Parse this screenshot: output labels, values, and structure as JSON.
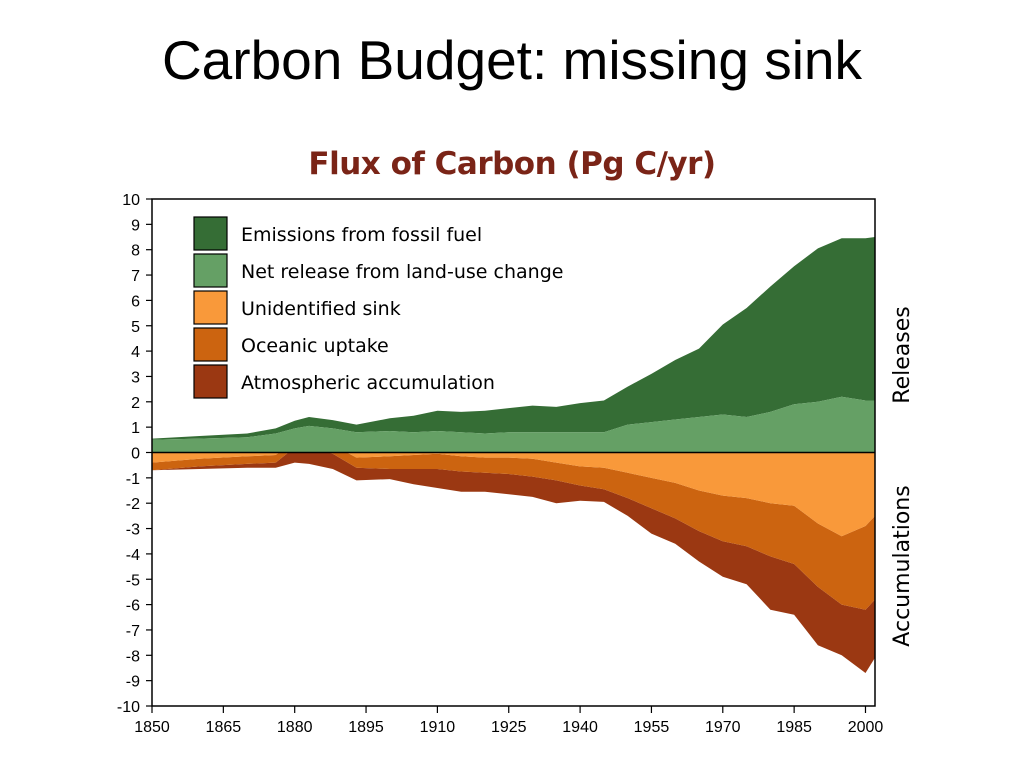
{
  "slide": {
    "title": "Carbon Budget: missing sink"
  },
  "chart_data": {
    "type": "area",
    "title": "Flux of Carbon (Pg C/yr)",
    "xlim": [
      1850,
      2002
    ],
    "ylim": [
      -10,
      10
    ],
    "x_ticks": [
      "1850",
      "1865",
      "1880",
      "1895",
      "1910",
      "1925",
      "1940",
      "1955",
      "1970",
      "1985",
      "2000"
    ],
    "y_ticks": [
      "10",
      "9",
      "8",
      "7",
      "6",
      "5",
      "4",
      "3",
      "2",
      "1",
      "0",
      "-1",
      "-2",
      "-3",
      "-4",
      "-5",
      "-6",
      "-7",
      "-8",
      "-9",
      "-10"
    ],
    "side_labels": {
      "top": "Releases",
      "bottom": "Accumulations"
    },
    "grid": false,
    "legend_position": "top-left",
    "series": [
      {
        "name": "Emissions from fossil fuel",
        "color": "#356d35",
        "x": [
          1850,
          1860,
          1870,
          1876,
          1880,
          1883,
          1888,
          1893,
          1900,
          1905,
          1910,
          1915,
          1920,
          1925,
          1930,
          1935,
          1940,
          1945,
          1950,
          1955,
          1960,
          1965,
          1970,
          1975,
          1980,
          1985,
          1990,
          1995,
          2000,
          2002
        ],
        "values": [
          0.05,
          0.1,
          0.15,
          0.2,
          0.3,
          0.35,
          0.33,
          0.3,
          0.5,
          0.65,
          0.8,
          0.8,
          0.9,
          0.95,
          1.05,
          1.0,
          1.15,
          1.25,
          1.5,
          1.9,
          2.35,
          2.7,
          3.55,
          4.3,
          4.95,
          5.45,
          6.05,
          6.25,
          6.4,
          6.45
        ]
      },
      {
        "name": "Net release from land-use change",
        "color": "#65a065",
        "x": [
          1850,
          1860,
          1870,
          1875,
          1880,
          1883,
          1887,
          1893,
          1900,
          1905,
          1910,
          1915,
          1920,
          1925,
          1930,
          1935,
          1940,
          1945,
          1950,
          1955,
          1960,
          1965,
          1970,
          1975,
          1980,
          1985,
          1990,
          1995,
          2000,
          2002
        ],
        "values": [
          0.5,
          0.55,
          0.6,
          0.75,
          0.95,
          1.05,
          0.95,
          0.8,
          0.85,
          0.8,
          0.85,
          0.8,
          0.75,
          0.8,
          0.8,
          0.8,
          0.8,
          0.8,
          1.1,
          1.2,
          1.3,
          1.4,
          1.5,
          1.4,
          1.6,
          1.9,
          2.0,
          2.2,
          2.05,
          2.05
        ]
      },
      {
        "name": "Unidentified sink",
        "color": "#f9993a",
        "x": [
          1850,
          1860,
          1870,
          1875,
          1880,
          1883,
          1887,
          1893,
          1900,
          1905,
          1910,
          1915,
          1920,
          1925,
          1930,
          1935,
          1940,
          1945,
          1950,
          1955,
          1960,
          1965,
          1970,
          1975,
          1980,
          1985,
          1990,
          1995,
          2000,
          2002
        ],
        "values": [
          -0.4,
          -0.25,
          -0.15,
          -0.1,
          0.5,
          0.55,
          0.3,
          -0.2,
          -0.15,
          -0.1,
          -0.05,
          -0.15,
          -0.2,
          -0.2,
          -0.25,
          -0.4,
          -0.55,
          -0.6,
          -0.8,
          -1.0,
          -1.2,
          -1.5,
          -1.7,
          -1.8,
          -2.0,
          -2.1,
          -2.8,
          -3.3,
          -2.9,
          -2.5
        ]
      },
      {
        "name": "Oceanic uptake",
        "color": "#cc6410",
        "x": [
          1850,
          1860,
          1870,
          1875,
          1880,
          1883,
          1887,
          1893,
          1900,
          1905,
          1910,
          1915,
          1920,
          1925,
          1930,
          1935,
          1940,
          1945,
          1950,
          1955,
          1960,
          1965,
          1970,
          1975,
          1980,
          1985,
          1990,
          1995,
          2000,
          2002
        ],
        "values": [
          -0.3,
          -0.3,
          -0.3,
          -0.3,
          -0.3,
          -0.3,
          -0.35,
          -0.4,
          -0.5,
          -0.55,
          -0.6,
          -0.6,
          -0.6,
          -0.65,
          -0.7,
          -0.7,
          -0.75,
          -0.85,
          -1.0,
          -1.2,
          -1.4,
          -1.6,
          -1.8,
          -1.9,
          -2.1,
          -2.3,
          -2.5,
          -2.7,
          -3.3,
          -3.3
        ]
      },
      {
        "name": "Atmospheric accumulation",
        "color": "#9b3812",
        "x": [
          1850,
          1860,
          1870,
          1875,
          1880,
          1883,
          1887,
          1893,
          1900,
          1905,
          1910,
          1915,
          1920,
          1925,
          1930,
          1935,
          1940,
          1945,
          1950,
          1955,
          1960,
          1965,
          1970,
          1975,
          1980,
          1985,
          1990,
          1995,
          2000,
          2002
        ],
        "values": [
          0.0,
          -0.1,
          -0.15,
          -0.2,
          -0.6,
          -0.7,
          -0.6,
          -0.5,
          -0.4,
          -0.6,
          -0.75,
          -0.8,
          -0.75,
          -0.8,
          -0.8,
          -0.9,
          -0.6,
          -0.5,
          -0.7,
          -1.0,
          -1.0,
          -1.2,
          -1.4,
          -1.5,
          -2.1,
          -2.0,
          -2.3,
          -2.0,
          -2.5,
          -2.3
        ]
      }
    ]
  }
}
